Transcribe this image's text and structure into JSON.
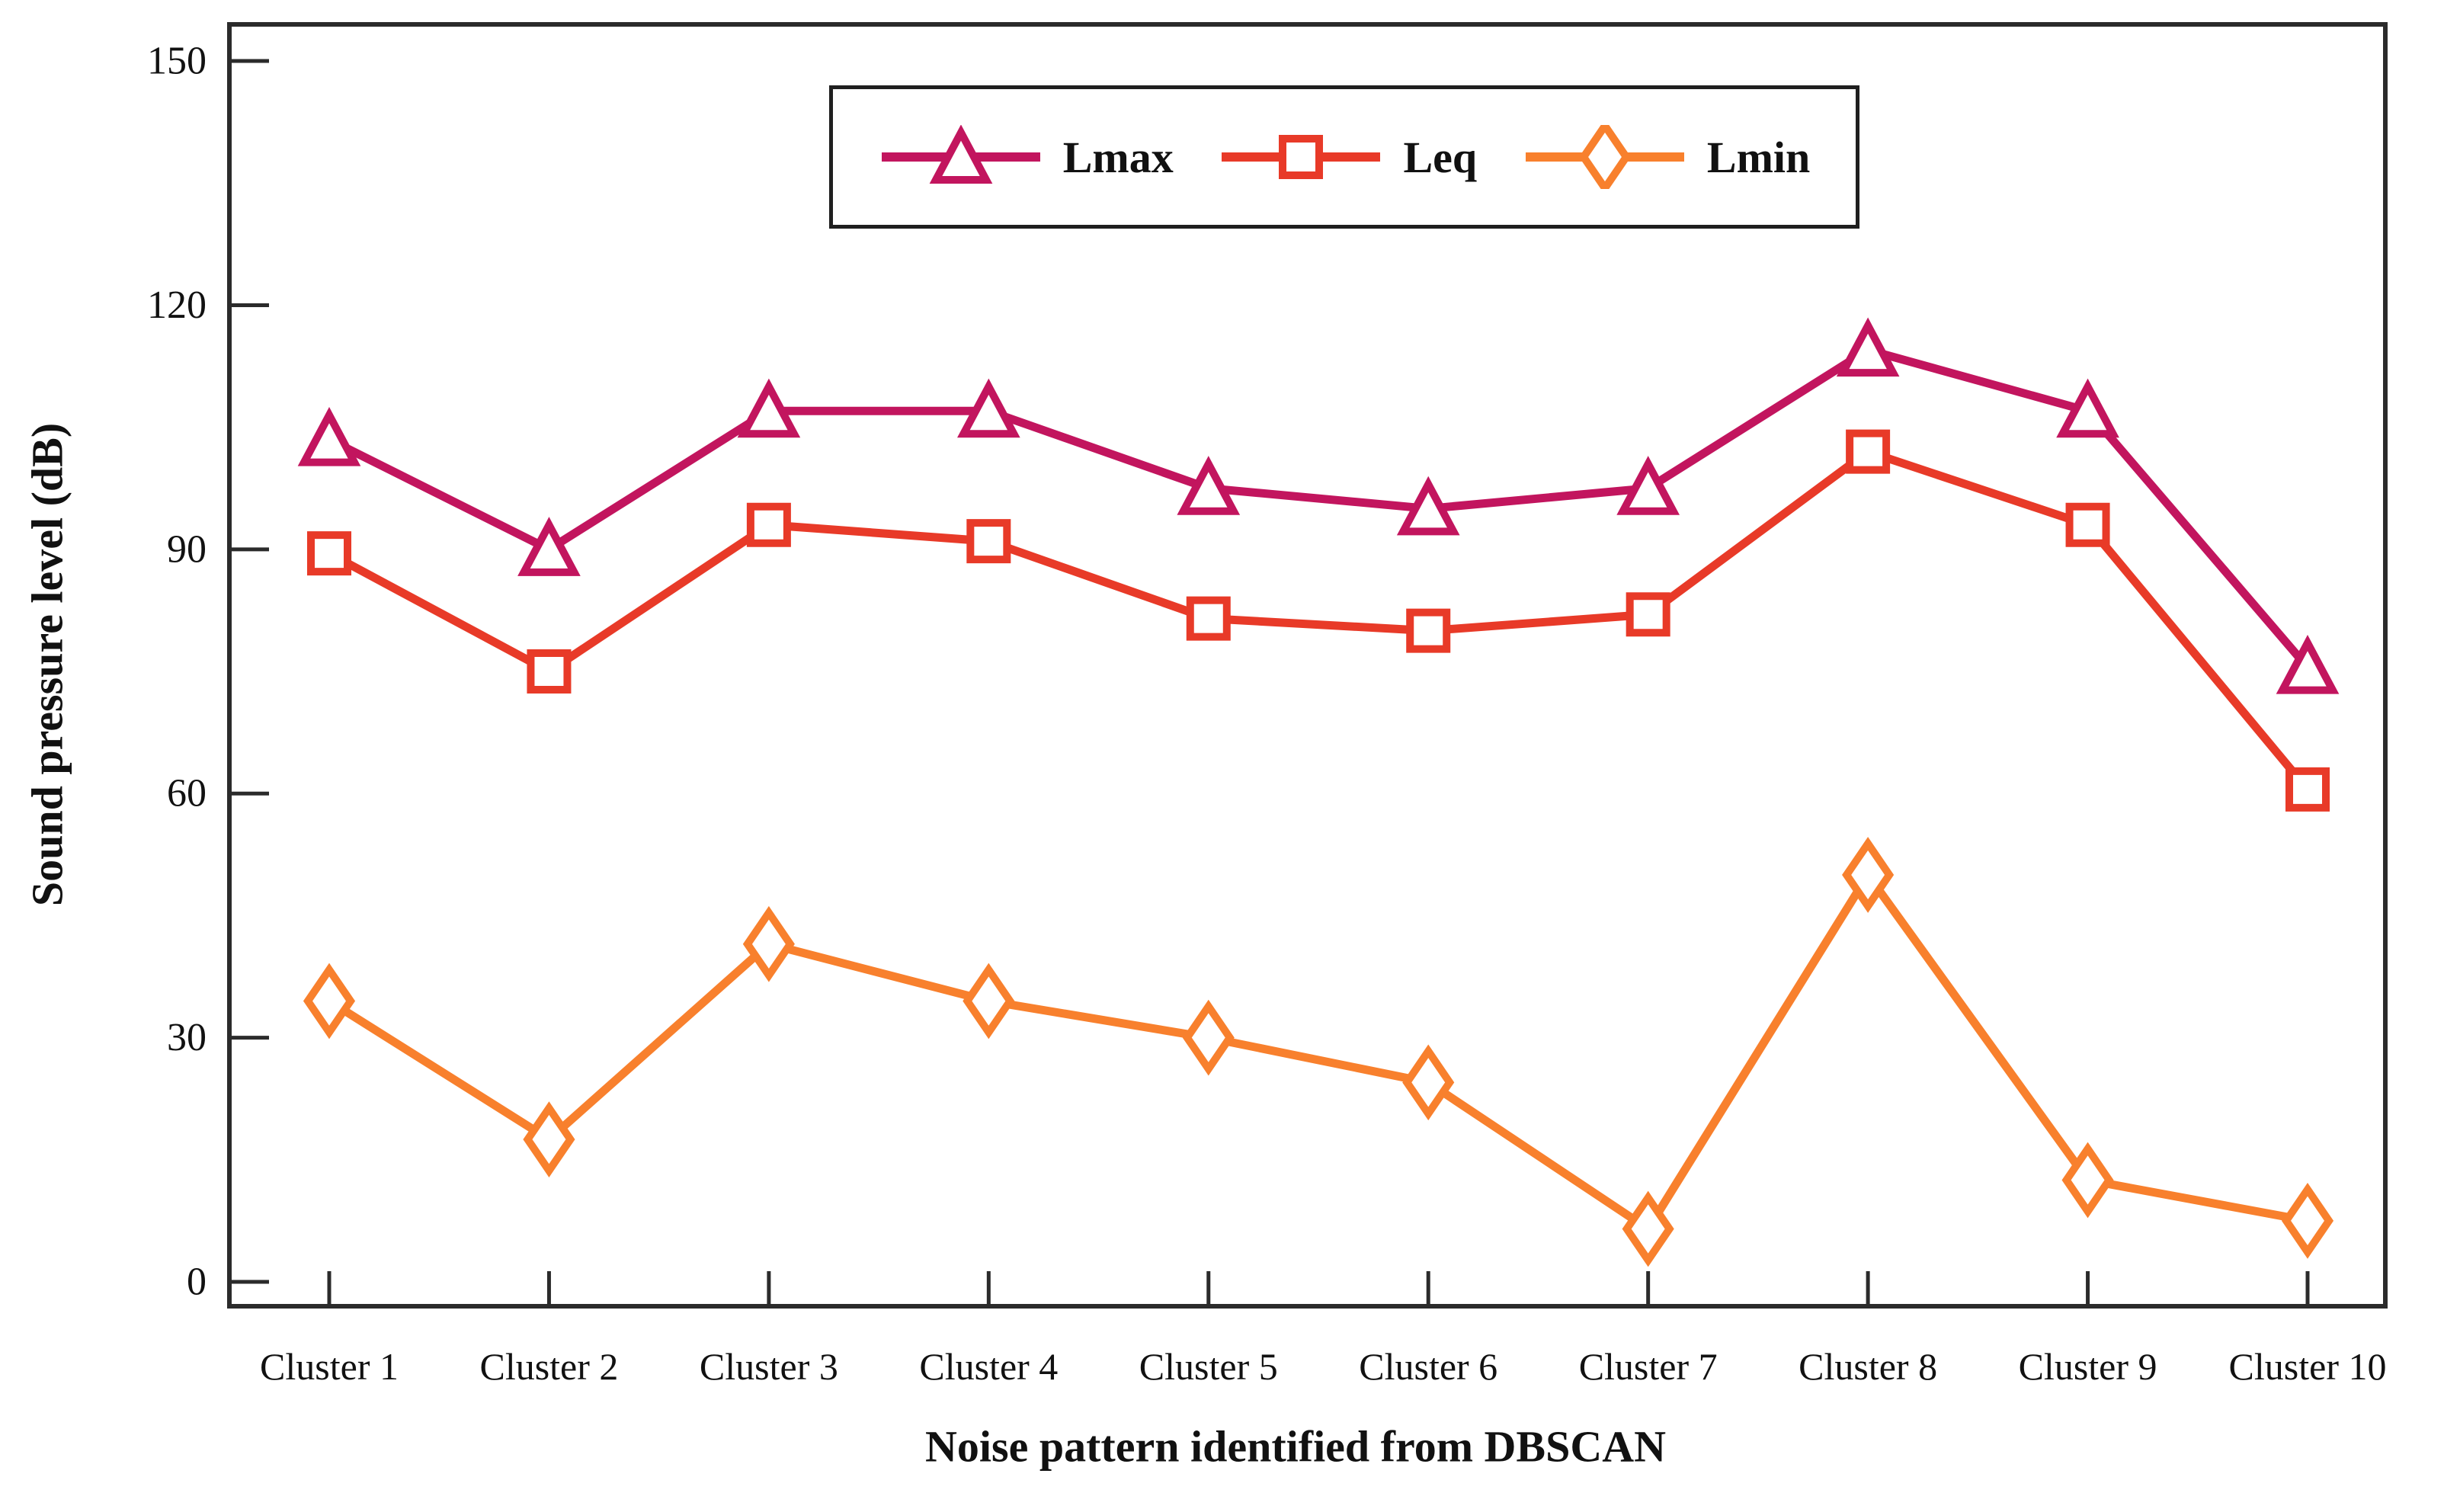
{
  "figure": {
    "y_axis_title": "Sound pressure level (dB)",
    "x_axis_title": "Noise pattern identified from DBSCAN"
  },
  "chart_data": {
    "type": "line",
    "title": "",
    "xlabel": "Noise pattern identified from DBSCAN",
    "ylabel": "Sound pressure level (dB)",
    "categories": [
      "Cluster 1",
      "Cluster 2",
      "Cluster 3",
      "Cluster 4",
      "Cluster 5",
      "Cluster 6",
      "Cluster 7",
      "Cluster 8",
      "Cluster 9",
      "Cluster 10"
    ],
    "series": [
      {
        "name": "Lmax",
        "marker": "triangle",
        "color": "#C2155E",
        "values": [
          103.5,
          90,
          107,
          107,
          97.5,
          95,
          97.5,
          114.5,
          107,
          75.5
        ]
      },
      {
        "name": "Leq",
        "marker": "square",
        "color": "#E83A28",
        "values": [
          89.5,
          75,
          93,
          91,
          81.5,
          80,
          82,
          102,
          93,
          60.5
        ]
      },
      {
        "name": "Lmin",
        "marker": "diamond",
        "color": "#F8802D",
        "values": [
          34.5,
          17.5,
          41.5,
          34.5,
          30,
          24.5,
          6.5,
          50,
          12.5,
          7.5
        ]
      }
    ],
    "y_ticks": [
      0,
      30,
      60,
      90,
      120,
      150
    ],
    "ylim": [
      -3,
      154.5
    ],
    "grid": false,
    "legend_position": "top-center"
  },
  "colors": {
    "text": "#111111",
    "frame": "#2b2b2b",
    "background": "#ffffff"
  }
}
